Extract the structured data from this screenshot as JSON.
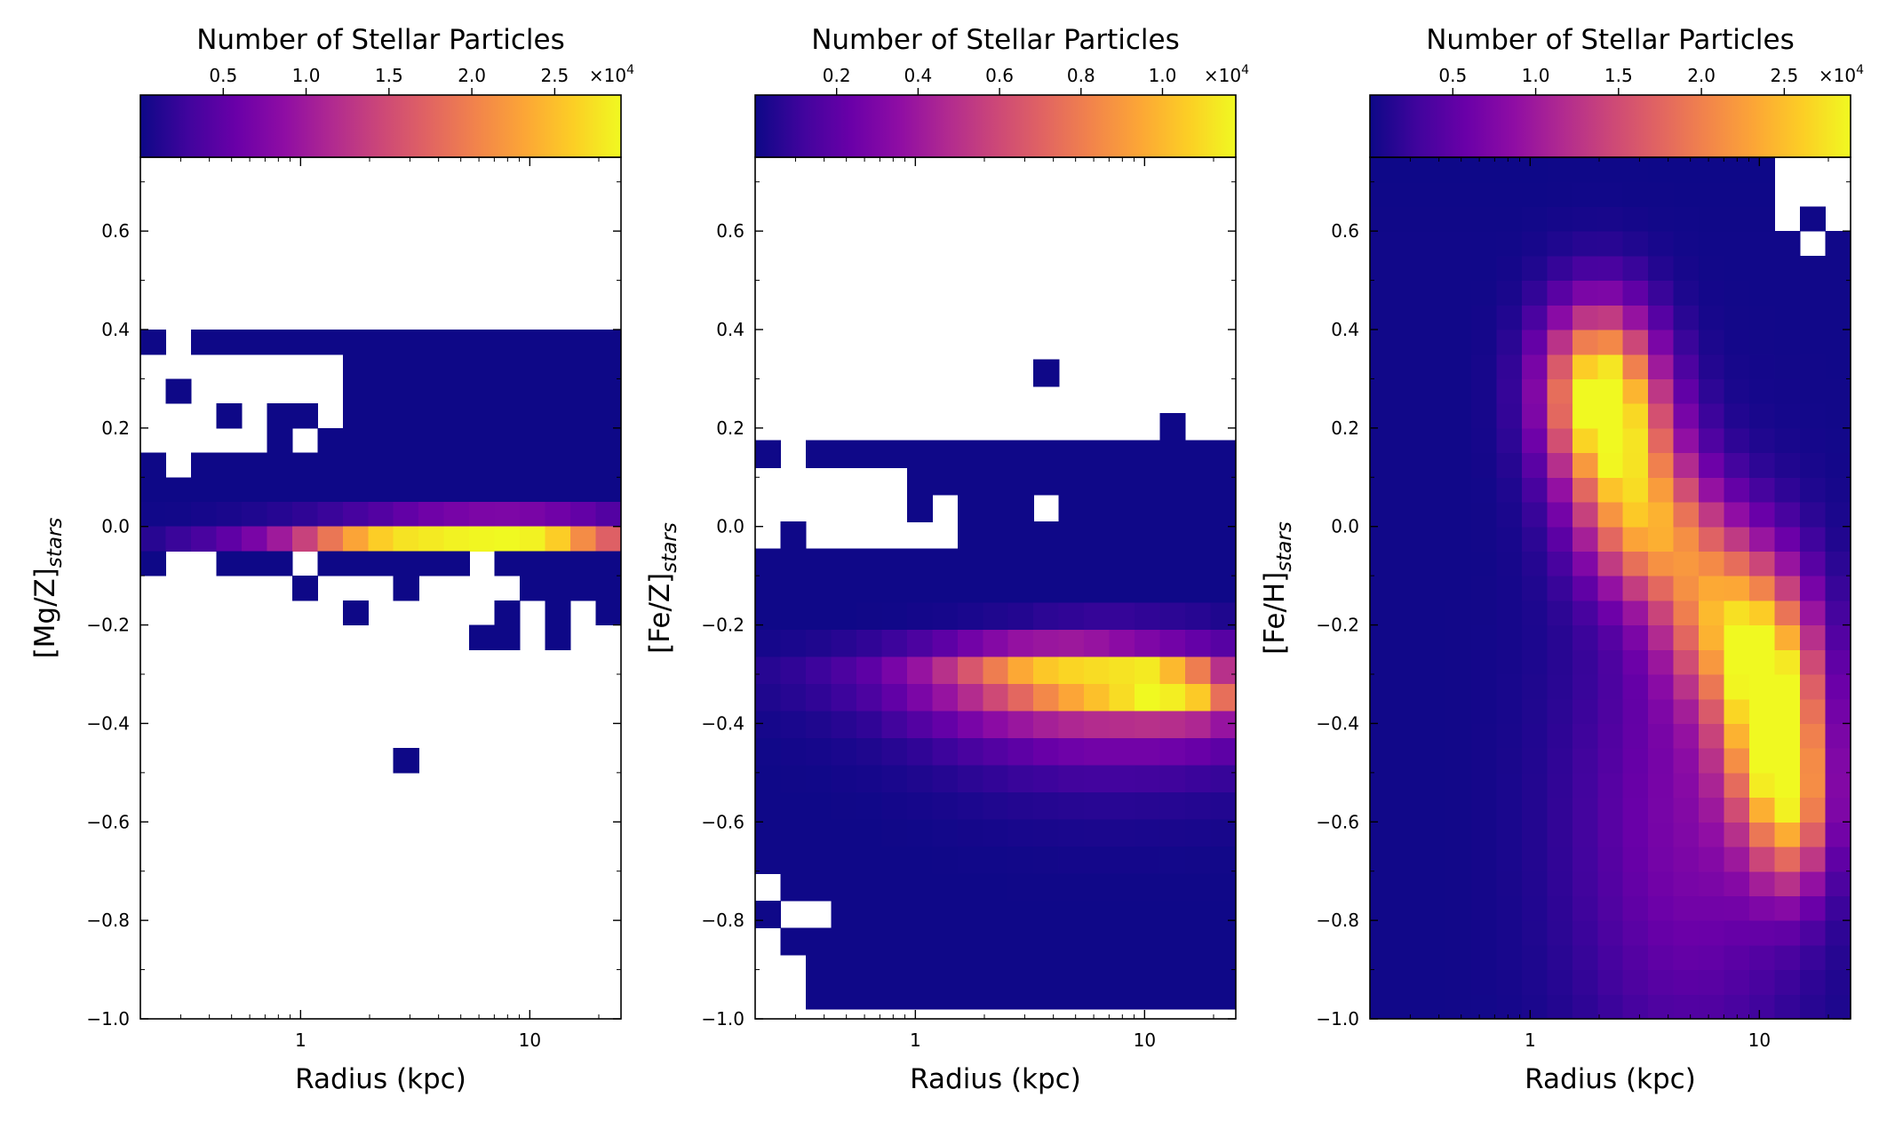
{
  "colormap": "plasma",
  "colors": {
    "empty": "#ffffff",
    "frame": "#000000"
  },
  "chart_data": [
    {
      "type": "heatmap",
      "ylabel_base": "[Mg/Z]",
      "ylabel_sub": "stars",
      "xlabel": "Radius (kpc)",
      "x_scale": "log",
      "xlim": [
        0.2,
        25
      ],
      "xticks": [
        1,
        10
      ],
      "xtick_labels": [
        "1",
        "10"
      ],
      "ylim": [
        -1.0,
        0.75
      ],
      "yticks": [
        -1.0,
        -0.8,
        -0.6,
        -0.4,
        -0.2,
        0.0,
        0.2,
        0.4,
        0.6
      ],
      "ytick_labels": [
        "−1.0",
        "−0.8",
        "−0.6",
        "−0.4",
        "−0.2",
        "0.0",
        "0.2",
        "0.4",
        "0.6"
      ],
      "grid": {
        "nx": 19,
        "y_start": -1.0,
        "dy": 0.05,
        "ny": 35
      },
      "colorbar": {
        "title": "Number of Stellar Particles",
        "vmax": 29000,
        "ticks": [
          5000,
          10000,
          15000,
          20000,
          25000
        ],
        "tick_labels": [
          "0.5",
          "1.0",
          "1.5",
          "2.0",
          "2.5"
        ],
        "offset_base": "×10",
        "offset_exp": "4"
      },
      "rows": [
        {
          "y": 0.35,
          "v": [
            50,
            0,
            50,
            50,
            50,
            50,
            50,
            50,
            50,
            50,
            50,
            50,
            50,
            50,
            50,
            50,
            50,
            50,
            50
          ]
        },
        {
          "y": 0.3,
          "v": [
            0,
            0,
            0,
            0,
            0,
            0,
            0,
            0,
            50,
            50,
            50,
            50,
            50,
            50,
            50,
            50,
            50,
            50,
            50
          ]
        },
        {
          "y": 0.25,
          "v": [
            0,
            50,
            0,
            0,
            0,
            0,
            0,
            0,
            50,
            50,
            50,
            50,
            50,
            50,
            50,
            50,
            50,
            50,
            50
          ]
        },
        {
          "y": 0.2,
          "v": [
            0,
            0,
            0,
            50,
            0,
            50,
            50,
            0,
            50,
            50,
            50,
            50,
            50,
            50,
            50,
            50,
            50,
            50,
            50
          ]
        },
        {
          "y": 0.15,
          "v": [
            0,
            0,
            0,
            0,
            0,
            50,
            0,
            50,
            50,
            50,
            50,
            50,
            50,
            50,
            50,
            50,
            50,
            50,
            50
          ]
        },
        {
          "y": 0.1,
          "v": [
            50,
            0,
            50,
            50,
            50,
            50,
            50,
            50,
            50,
            50,
            50,
            50,
            50,
            50,
            50,
            50,
            50,
            50,
            50
          ]
        },
        {
          "y": 0.05,
          "v": [
            50,
            50,
            50,
            50,
            50,
            50,
            50,
            50,
            50,
            50,
            50,
            50,
            50,
            50,
            50,
            50,
            50,
            50,
            50
          ]
        },
        {
          "y": 0.0,
          "v": [
            200,
            300,
            500,
            700,
            1000,
            1400,
            1900,
            2500,
            3300,
            4200,
            5200,
            6200,
            6800,
            7200,
            7300,
            7000,
            6300,
            5300,
            4200
          ]
        },
        {
          "y": -0.05,
          "v": [
            1500,
            2500,
            3500,
            5000,
            7000,
            10000,
            14000,
            19000,
            23000,
            26000,
            27500,
            28000,
            28500,
            28800,
            29000,
            28500,
            26000,
            21000,
            17000
          ]
        },
        {
          "y": -0.1,
          "v": [
            50,
            0,
            0,
            50,
            50,
            50,
            0,
            50,
            50,
            50,
            50,
            50,
            50,
            0,
            50,
            50,
            50,
            50,
            50
          ]
        },
        {
          "y": -0.15,
          "v": [
            0,
            0,
            0,
            0,
            0,
            0,
            50,
            0,
            0,
            0,
            50,
            0,
            0,
            0,
            0,
            50,
            50,
            50,
            50
          ]
        },
        {
          "y": -0.2,
          "v": [
            0,
            0,
            0,
            0,
            0,
            0,
            0,
            0,
            50,
            0,
            0,
            0,
            0,
            0,
            50,
            0,
            50,
            0,
            50
          ]
        },
        {
          "y": -0.25,
          "v": [
            0,
            0,
            0,
            0,
            0,
            0,
            0,
            0,
            0,
            0,
            0,
            0,
            0,
            50,
            50,
            0,
            50,
            0,
            0
          ]
        },
        {
          "y": -0.5,
          "v": [
            0,
            0,
            0,
            0,
            0,
            0,
            0,
            0,
            0,
            0,
            50,
            0,
            0,
            0,
            0,
            0,
            0,
            0,
            0
          ]
        }
      ]
    },
    {
      "type": "heatmap",
      "ylabel_base": "[Fe/Z]",
      "ylabel_sub": "stars",
      "xlabel": "Radius (kpc)",
      "x_scale": "log",
      "xlim": [
        0.2,
        25
      ],
      "xticks": [
        1,
        10
      ],
      "xtick_labels": [
        "1",
        "10"
      ],
      "ylim": [
        -1.0,
        0.75
      ],
      "yticks": [
        -1.0,
        -0.8,
        -0.6,
        -0.4,
        -0.2,
        0.0,
        0.2,
        0.4,
        0.6
      ],
      "ytick_labels": [
        "−1.0",
        "−0.8",
        "−0.6",
        "−0.4",
        "−0.2",
        "0.0",
        "0.2",
        "0.4",
        "0.6"
      ],
      "grid": {
        "nx": 19,
        "y_start": -1.0,
        "dy": 0.055,
        "ny": 32
      },
      "colorbar": {
        "title": "Number of Stellar Particles",
        "vmax": 11800,
        "ticks": [
          2000,
          4000,
          6000,
          8000,
          10000
        ],
        "tick_labels": [
          "0.2",
          "0.4",
          "0.6",
          "0.8",
          "1.0"
        ],
        "offset_base": "×10",
        "offset_exp": "4"
      },
      "rows": [
        {
          "y": 0.285,
          "v": [
            0,
            0,
            0,
            0,
            0,
            0,
            0,
            0,
            0,
            0,
            0,
            50,
            0,
            0,
            0,
            0,
            0,
            0,
            0
          ]
        },
        {
          "y": 0.175,
          "v": [
            0,
            0,
            0,
            0,
            0,
            0,
            0,
            0,
            0,
            0,
            0,
            0,
            0,
            0,
            0,
            0,
            50,
            0,
            0
          ]
        },
        {
          "y": 0.12,
          "v": [
            50,
            0,
            50,
            50,
            50,
            50,
            50,
            50,
            50,
            50,
            50,
            50,
            50,
            50,
            50,
            50,
            50,
            50,
            50
          ]
        },
        {
          "y": 0.065,
          "v": [
            0,
            0,
            0,
            0,
            0,
            0,
            50,
            50,
            50,
            50,
            50,
            50,
            50,
            50,
            50,
            50,
            50,
            50,
            50
          ]
        },
        {
          "y": 0.01,
          "v": [
            0,
            0,
            0,
            0,
            0,
            0,
            50,
            0,
            50,
            50,
            50,
            0,
            50,
            50,
            50,
            50,
            50,
            50,
            50
          ]
        },
        {
          "y": -0.045,
          "v": [
            0,
            50,
            0,
            0,
            0,
            0,
            0,
            0,
            50,
            50,
            50,
            50,
            50,
            50,
            50,
            50,
            50,
            50,
            50
          ]
        },
        {
          "y": -0.1,
          "v": [
            50,
            50,
            50,
            50,
            50,
            50,
            50,
            50,
            50,
            50,
            50,
            50,
            50,
            50,
            50,
            50,
            50,
            50,
            50
          ]
        },
        {
          "y": -0.155,
          "v": [
            50,
            50,
            50,
            50,
            50,
            50,
            50,
            50,
            50,
            50,
            50,
            50,
            50,
            50,
            50,
            50,
            50,
            50,
            50
          ]
        },
        {
          "y": -0.21,
          "v": [
            50,
            50,
            50,
            50,
            80,
            100,
            150,
            200,
            300,
            400,
            500,
            700,
            800,
            900,
            900,
            800,
            700,
            600,
            400
          ]
        },
        {
          "y": -0.265,
          "v": [
            200,
            300,
            400,
            600,
            800,
            1100,
            1500,
            2000,
            2600,
            3200,
            3700,
            3900,
            4000,
            3800,
            3400,
            3000,
            2600,
            2200,
            1800
          ]
        },
        {
          "y": -0.32,
          "v": [
            600,
            800,
            1100,
            1500,
            2000,
            2800,
            3800,
            5000,
            6500,
            8000,
            9500,
            10400,
            10800,
            11000,
            11200,
            11400,
            10000,
            8000,
            5000
          ]
        },
        {
          "y": -0.375,
          "v": [
            400,
            600,
            800,
            1100,
            1500,
            2100,
            2900,
            3800,
            4800,
            6000,
            7200,
            8400,
            9400,
            10200,
            11000,
            11800,
            11500,
            10500,
            7500
          ]
        },
        {
          "y": -0.43,
          "v": [
            200,
            300,
            400,
            600,
            800,
            1200,
            1700,
            2200,
            2800,
            3400,
            3900,
            4300,
            4600,
            4800,
            4900,
            5000,
            4900,
            4600,
            3800
          ]
        },
        {
          "y": -0.485,
          "v": [
            100,
            150,
            200,
            300,
            400,
            600,
            800,
            1100,
            1400,
            1700,
            2000,
            2300,
            2500,
            2600,
            2600,
            2600,
            2500,
            2300,
            2000
          ]
        },
        {
          "y": -0.54,
          "v": [
            50,
            80,
            100,
            150,
            200,
            300,
            400,
            550,
            700,
            850,
            1000,
            1100,
            1200,
            1250,
            1250,
            1200,
            1150,
            1050,
            950
          ]
        },
        {
          "y": -0.595,
          "v": [
            50,
            50,
            50,
            80,
            100,
            150,
            200,
            280,
            350,
            420,
            500,
            550,
            600,
            620,
            620,
            600,
            570,
            530,
            480
          ]
        },
        {
          "y": -0.65,
          "v": [
            50,
            50,
            50,
            50,
            50,
            80,
            100,
            140,
            180,
            210,
            250,
            270,
            300,
            310,
            310,
            300,
            290,
            270,
            240
          ]
        },
        {
          "y": -0.705,
          "v": [
            50,
            50,
            50,
            50,
            50,
            50,
            50,
            70,
            90,
            100,
            120,
            130,
            150,
            150,
            150,
            150,
            140,
            130,
            120
          ]
        },
        {
          "y": -0.76,
          "v": [
            0,
            50,
            50,
            50,
            50,
            50,
            50,
            50,
            50,
            50,
            60,
            60,
            70,
            70,
            70,
            70,
            70,
            60,
            60
          ]
        },
        {
          "y": -0.815,
          "v": [
            50,
            0,
            0,
            50,
            50,
            50,
            50,
            50,
            50,
            50,
            50,
            50,
            50,
            50,
            50,
            50,
            50,
            50,
            50
          ]
        },
        {
          "y": -0.87,
          "v": [
            0,
            50,
            50,
            50,
            50,
            50,
            50,
            50,
            50,
            50,
            50,
            50,
            50,
            50,
            50,
            50,
            50,
            50,
            50
          ]
        },
        {
          "y": -0.925,
          "v": [
            0,
            0,
            50,
            50,
            50,
            50,
            50,
            50,
            50,
            50,
            50,
            50,
            50,
            50,
            50,
            50,
            50,
            50,
            50
          ]
        },
        {
          "y": -0.98,
          "v": [
            0,
            0,
            50,
            50,
            50,
            50,
            50,
            50,
            50,
            50,
            50,
            50,
            50,
            50,
            50,
            50,
            50,
            50,
            50
          ]
        }
      ]
    },
    {
      "type": "heatmap",
      "ylabel_base": "[Fe/H]",
      "ylabel_sub": "stars",
      "xlabel": "Radius (kpc)",
      "x_scale": "log",
      "xlim": [
        0.2,
        25
      ],
      "xticks": [
        1,
        10
      ],
      "xtick_labels": [
        "1",
        "10"
      ],
      "ylim": [
        -1.0,
        0.75
      ],
      "yticks": [
        -1.0,
        -0.8,
        -0.6,
        -0.4,
        -0.2,
        0.0,
        0.2,
        0.4,
        0.6
      ],
      "ytick_labels": [
        "−1.0",
        "−0.8",
        "−0.6",
        "−0.4",
        "−0.2",
        "0.0",
        "0.2",
        "0.4",
        "0.6"
      ],
      "grid": {
        "nx": 19,
        "y_start": -1.0,
        "dy": 0.05,
        "ny": 35
      },
      "colorbar": {
        "title": "Number of Stellar Particles",
        "vmax": 29000,
        "ticks": [
          5000,
          10000,
          15000,
          20000,
          25000
        ],
        "tick_labels": [
          "0.5",
          "1.0",
          "1.5",
          "2.0",
          "2.5"
        ],
        "offset_base": "×10",
        "offset_exp": "4"
      },
      "blobs": {
        "floor": 200,
        "decay": 0.12,
        "peaks": [
          {
            "logr": 0.3,
            "y": 0.28,
            "amp": 27000,
            "sx": 0.17,
            "sy": 0.12
          },
          {
            "logr": 0.42,
            "y": 0.12,
            "amp": 15000,
            "sx": 0.18,
            "sy": 0.12
          },
          {
            "logr": 0.55,
            "y": -0.02,
            "amp": 14000,
            "sx": 0.2,
            "sy": 0.1
          },
          {
            "logr": 0.82,
            "y": -0.18,
            "amp": 16000,
            "sx": 0.18,
            "sy": 0.12
          },
          {
            "logr": 1.05,
            "y": -0.36,
            "amp": 28500,
            "sx": 0.15,
            "sy": 0.16
          },
          {
            "logr": 1.15,
            "y": -0.58,
            "amp": 15000,
            "sx": 0.12,
            "sy": 0.12
          },
          {
            "logr": 0.7,
            "y": -0.6,
            "amp": 7000,
            "sx": 0.35,
            "sy": 0.35
          }
        ],
        "empty_cells": [
          {
            "col": 16,
            "row": 33
          },
          {
            "col": 17,
            "row": 33
          },
          {
            "col": 18,
            "row": 33
          },
          {
            "col": 16,
            "row": 34
          },
          {
            "col": 17,
            "row": 34
          },
          {
            "col": 18,
            "row": 34
          },
          {
            "col": 16,
            "row": 32
          },
          {
            "col": 18,
            "row": 32
          },
          {
            "col": 17,
            "row": 31
          }
        ]
      }
    }
  ]
}
